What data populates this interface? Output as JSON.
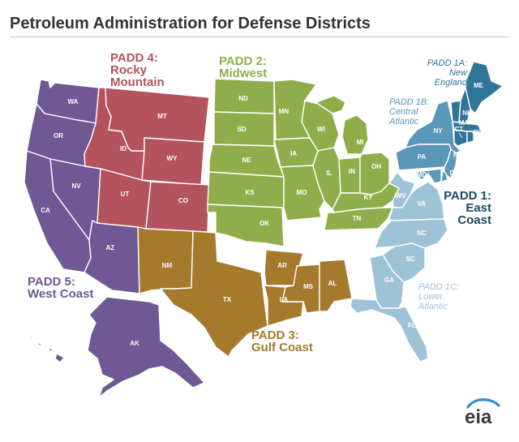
{
  "title": "Petroleum Administration for Defense Districts",
  "colors": {
    "padd1a": "#2f7597",
    "padd1b": "#5b97b9",
    "padd1c": "#9fc3d6",
    "padd2": "#8fae4b",
    "padd3": "#a57a2c",
    "padd4": "#b2535d",
    "padd5": "#6f5893",
    "title_text": "#333333",
    "padd1_text": "#1c4a63"
  },
  "regions": {
    "padd1": {
      "line1": "PADD 1:",
      "line2": "East",
      "line3": "Coast"
    },
    "padd1a": {
      "line1": "PADD 1A:",
      "line2": "New",
      "line3": "England"
    },
    "padd1b": {
      "line1": "PADD 1B:",
      "line2": "Central",
      "line3": "Atlantic"
    },
    "padd1c": {
      "line1": "PADD 1C:",
      "line2": "Lower",
      "line3": "Atlantic"
    },
    "padd2": {
      "line1": "PADD 2:",
      "line2": "Midwest"
    },
    "padd3": {
      "line1": "PADD 3:",
      "line2": "Gulf Coast"
    },
    "padd4": {
      "line1": "PADD 4:",
      "line2": "Rocky",
      "line3": "Mountain"
    },
    "padd5": {
      "line1": "PADD 5:",
      "line2": "West Coast"
    }
  },
  "states": {
    "WA": "WA",
    "OR": "OR",
    "CA": "CA",
    "NV": "NV",
    "AZ": "AZ",
    "AK": "AK",
    "HI": "HI",
    "MT": "MT",
    "ID": "ID",
    "WY": "WY",
    "UT": "UT",
    "CO": "CO",
    "ND": "ND",
    "SD": "SD",
    "NE": "NE",
    "KS": "KS",
    "OK": "OK",
    "MN": "MN",
    "IA": "IA",
    "MO": "MO",
    "WI": "WI",
    "IL": "IL",
    "MI": "MI",
    "IN": "IN",
    "OH": "OH",
    "KY": "KY",
    "TN": "TN",
    "NM": "NM",
    "TX": "TX",
    "AR": "AR",
    "LA": "LA",
    "MS": "MS",
    "AL": "AL",
    "ME": "ME",
    "VT": "VT",
    "NH": "NH",
    "MA": "MA",
    "CT": "CT",
    "RI": "RI",
    "NY": "NY",
    "PA": "PA",
    "NJ": "NJ",
    "DE": "DE",
    "MD": "MD",
    "WV": "WV",
    "VA": "VA",
    "NC": "NC",
    "SC": "SC",
    "GA": "GA",
    "FL": "FL"
  },
  "logo": {
    "text": "eia"
  }
}
